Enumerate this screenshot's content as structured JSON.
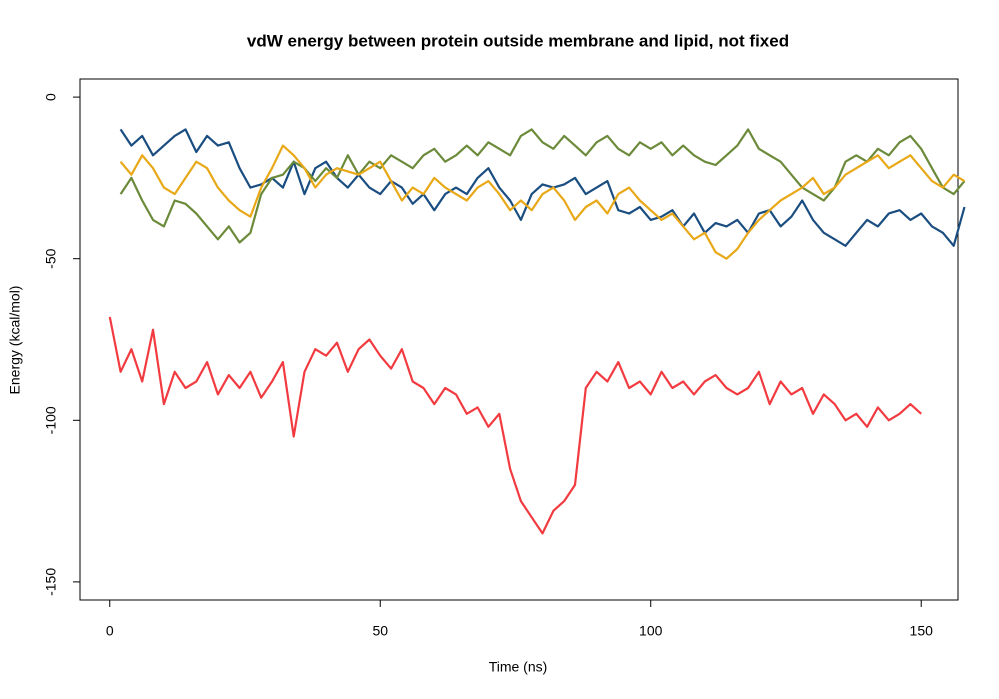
{
  "chart_data": {
    "type": "line",
    "title": "vdW energy between protein outside membrane and lipid, not fixed",
    "x_label": "Time (ns)",
    "y_label": "Energy (kcal/mol)",
    "xlim": [
      -5.5,
      156.8
    ],
    "ylim": [
      -155.6,
      5.6
    ],
    "xticks": [
      0,
      50,
      100,
      150
    ],
    "yticks": [
      0,
      -50,
      -100,
      -150
    ],
    "x": [
      0,
      2,
      4,
      6,
      8,
      10,
      12,
      14,
      16,
      18,
      20,
      22,
      24,
      26,
      28,
      30,
      32,
      34,
      36,
      38,
      40,
      42,
      44,
      46,
      48,
      50,
      52,
      54,
      56,
      58,
      60,
      62,
      64,
      66,
      68,
      70,
      72,
      74,
      76,
      78,
      80,
      82,
      84,
      86,
      88,
      90,
      92,
      94,
      96,
      98,
      100,
      102,
      104,
      106,
      108,
      110,
      112,
      114,
      116,
      118,
      120,
      122,
      124,
      126,
      128,
      130,
      132,
      134,
      136,
      138,
      140,
      142,
      144,
      146,
      148,
      150,
      152,
      154,
      156,
      158
    ],
    "series": [
      {
        "color": "#f23b40",
        "values": [
          -68,
          -85,
          -78,
          -88,
          -72,
          -95,
          -85,
          -90,
          -88,
          -82,
          -92,
          -86,
          -90,
          -85,
          -93,
          -88,
          -82,
          -105,
          -85,
          -78,
          -80,
          -76,
          -85,
          -78,
          -75,
          -80,
          -84,
          -78,
          -88,
          -90,
          -95,
          -90,
          -92,
          -98,
          -96,
          -102,
          -98,
          -115,
          -125,
          -130,
          -135,
          -128,
          -125,
          -120,
          -90,
          -85,
          -88,
          -82,
          -90,
          -88,
          -92,
          -85,
          -90,
          -88,
          -92,
          -88,
          -86,
          -90,
          -92,
          -90,
          -85,
          -95,
          -88,
          -92,
          -90,
          -98,
          -92,
          -95,
          -100,
          -98,
          -102,
          -96,
          -100,
          -98,
          -95,
          -98,
          null,
          null,
          null,
          null
        ]
      },
      {
        "color": "#1a4d80",
        "values": [
          null,
          -10,
          -15,
          -12,
          -18,
          -15,
          -12,
          -10,
          -17,
          -12,
          -15,
          -14,
          -22,
          -28,
          -27,
          -25,
          -28,
          -20,
          -30,
          -22,
          -20,
          -25,
          -28,
          -24,
          -28,
          -30,
          -26,
          -28,
          -33,
          -30,
          -35,
          -30,
          -28,
          -30,
          -25,
          -22,
          -28,
          -32,
          -38,
          -30,
          -27,
          -28,
          -27,
          -25,
          -30,
          -28,
          -26,
          -35,
          -36,
          -34,
          -38,
          -37,
          -35,
          -40,
          -36,
          -42,
          -39,
          -40,
          -38,
          -42,
          -36,
          -35,
          -40,
          -37,
          -32,
          -38,
          -42,
          -44,
          -46,
          -42,
          -38,
          -40,
          -36,
          -35,
          -38,
          -36,
          -40,
          -42,
          -46,
          -34
        ]
      },
      {
        "color": "#6b8a3a",
        "values": [
          null,
          -30,
          -25,
          -32,
          -38,
          -40,
          -32,
          -33,
          -36,
          -40,
          -44,
          -40,
          -45,
          -42,
          -30,
          -25,
          -24,
          -20,
          -22,
          -26,
          -22,
          -25,
          -18,
          -24,
          -20,
          -22,
          -18,
          -20,
          -22,
          -18,
          -16,
          -20,
          -18,
          -15,
          -18,
          -14,
          -16,
          -18,
          -12,
          -10,
          -14,
          -16,
          -12,
          -15,
          -18,
          -14,
          -12,
          -16,
          -18,
          -14,
          -16,
          -14,
          -18,
          -15,
          -18,
          -20,
          -21,
          -18,
          -15,
          -10,
          -16,
          -18,
          -20,
          -24,
          -28,
          -30,
          -32,
          -28,
          -20,
          -18,
          -20,
          -16,
          -18,
          -14,
          -12,
          -16,
          -22,
          -28,
          -30,
          -26
        ]
      },
      {
        "color": "#e8a817",
        "values": [
          null,
          -20,
          -24,
          -18,
          -22,
          -28,
          -30,
          -25,
          -20,
          -22,
          -28,
          -32,
          -35,
          -37,
          -28,
          -22,
          -15,
          -18,
          -22,
          -28,
          -24,
          -22,
          -23,
          -24,
          -22,
          -20,
          -26,
          -32,
          -28,
          -30,
          -25,
          -28,
          -30,
          -32,
          -28,
          -26,
          -30,
          -35,
          -32,
          -35,
          -30,
          -28,
          -32,
          -38,
          -34,
          -32,
          -36,
          -30,
          -28,
          -32,
          -35,
          -38,
          -36,
          -40,
          -44,
          -42,
          -48,
          -50,
          -47,
          -42,
          -38,
          -35,
          -32,
          -30,
          -28,
          -25,
          -30,
          -28,
          -24,
          -22,
          -20,
          -18,
          -22,
          -20,
          -18,
          -22,
          -26,
          -28,
          -24,
          -26
        ]
      }
    ]
  }
}
